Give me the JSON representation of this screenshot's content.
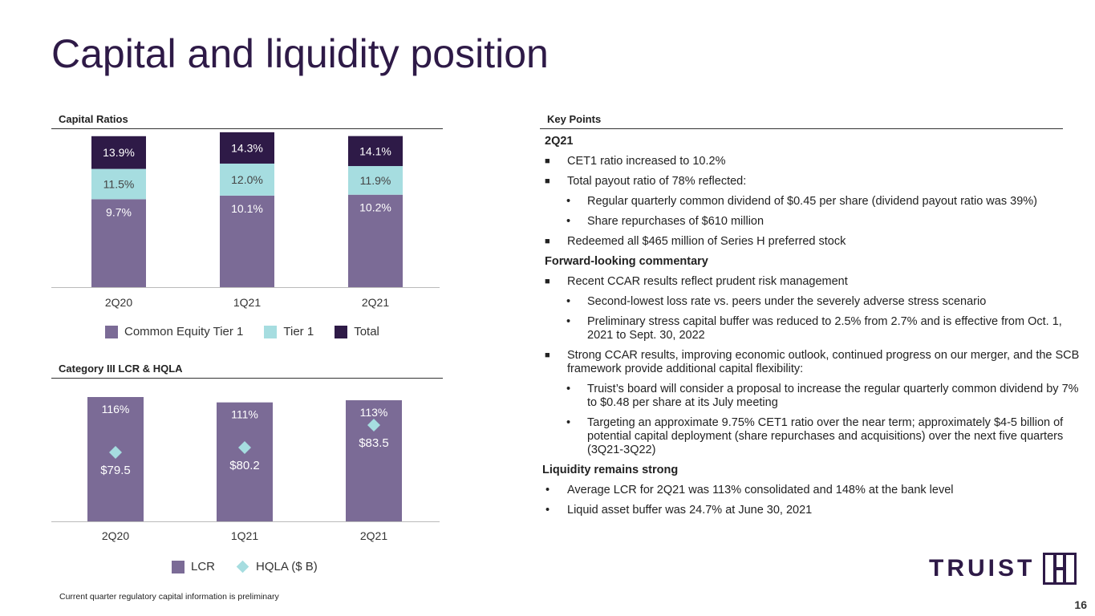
{
  "title": "Capital and liquidity position",
  "capital_section": {
    "heading": "Capital Ratios"
  },
  "lcr_section": {
    "heading": "Category III LCR & HQLA"
  },
  "colors": {
    "cet1": "#7b6b96",
    "tier1": "#a6dde0",
    "total": "#2e1a47",
    "hqla": "#a6dde0",
    "title": "#2e1a47"
  },
  "chart_data": [
    {
      "type": "bar",
      "stacked": true,
      "title": "Capital Ratios",
      "categories": [
        "2Q20",
        "1Q21",
        "2Q21"
      ],
      "series": [
        {
          "name": "Common Equity Tier 1",
          "values": [
            9.7,
            10.1,
            10.2
          ],
          "labels": [
            "9.7%",
            "10.1%",
            "10.2%"
          ]
        },
        {
          "name": "Tier 1",
          "values": [
            11.5,
            12.0,
            11.9
          ],
          "labels": [
            "11.5%",
            "12.0%",
            "11.9%"
          ]
        },
        {
          "name": "Total",
          "values": [
            13.9,
            14.3,
            14.1
          ],
          "labels": [
            "13.9%",
            "14.3%",
            "14.1%"
          ]
        }
      ],
      "legend": "bottom"
    },
    {
      "type": "bar",
      "title": "Category III LCR & HQLA",
      "categories": [
        "2Q20",
        "1Q21",
        "2Q21"
      ],
      "series": [
        {
          "name": "LCR",
          "values": [
            116,
            111,
            113
          ],
          "labels": [
            "116%",
            "111%",
            "113%"
          ]
        },
        {
          "name": "HQLA ($ B)",
          "values": [
            79.5,
            80.2,
            83.5
          ],
          "labels": [
            "$79.5",
            "$80.2",
            "$83.5"
          ],
          "marker": "diamond"
        }
      ],
      "legend": "bottom"
    }
  ],
  "key_points": {
    "heading": "Key Points",
    "sub_2q21": "2Q21",
    "b1": "CET1 ratio increased to 10.2%",
    "b2": "Total payout ratio of 78% reflected:",
    "b2a": "Regular quarterly common dividend of $0.45 per share (dividend payout ratio was 39%)",
    "b2b": "Share repurchases of $610 million",
    "b3": "Redeemed all $465 million of Series H preferred stock",
    "sub_forward": "Forward-looking commentary",
    "f1": "Recent CCAR results reflect prudent risk management",
    "f1a": "Second-lowest loss rate vs. peers under the severely adverse stress scenario",
    "f1b": "Preliminary stress capital buffer was reduced to 2.5% from 2.7% and is effective from Oct. 1, 2021 to Sept. 30, 2022",
    "f2": "Strong CCAR results, improving economic outlook, continued progress on our merger, and the SCB framework provide additional capital flexibility:",
    "f2a": "Truist’s board will consider a proposal to increase the regular quarterly common dividend by 7% to $0.48 per share at its July meeting",
    "f2b": "Targeting an approximate 9.75% CET1 ratio over the near term; approximately $4-5 billion of potential capital deployment (share repurchases and acquisitions) over the next five quarters (3Q21-3Q22)",
    "sub_liquidity": "Liquidity remains strong",
    "l1": "Average LCR for 2Q21 was 113% consolidated and 148% at the bank level",
    "l2": "Liquid asset buffer was 24.7% at June 30, 2021"
  },
  "footnote": "Current quarter regulatory capital information is preliminary",
  "page_number": "16",
  "logo": {
    "text": "TRUIST"
  }
}
